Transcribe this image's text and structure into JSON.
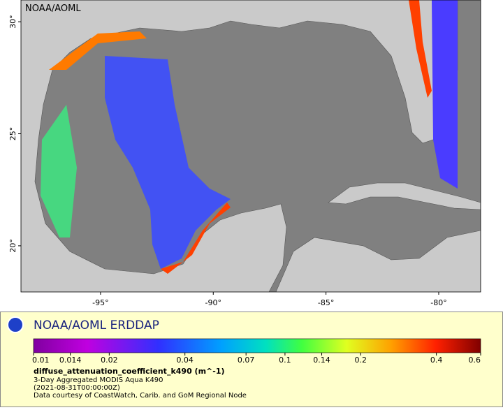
{
  "map": {
    "watermark": "NOAA/AOML",
    "xlim": [
      -98.53,
      -78.14
    ],
    "ylim": [
      17.94,
      30.97
    ],
    "xticks": [
      {
        "value": -95,
        "label": "-95°"
      },
      {
        "value": -90,
        "label": "-90°"
      },
      {
        "value": -85,
        "label": "-85°"
      },
      {
        "value": -80,
        "label": "-80°"
      }
    ],
    "yticks": [
      {
        "value": 20,
        "label": "20°"
      },
      {
        "value": 25,
        "label": "25°"
      },
      {
        "value": 30,
        "label": "30°"
      }
    ]
  },
  "legend": {
    "title": "NOAA/AOML ERDDAP",
    "colorbar": {
      "lim": [
        0.01,
        0.6
      ],
      "log": true,
      "ticks": [
        0.01,
        0.014,
        0.02,
        0.04,
        0.07,
        0.1,
        0.14,
        0.2,
        0.4,
        0.6
      ]
    },
    "variable": "diffuse_attenuation_coefficient_k490 (m^-1)",
    "lines": [
      "3-Day Aggregated MODIS Aqua K490",
      "(2021-08-31T00:00:00Z)",
      "Data courtesy of CoastWatch, Carib. and GoM Regional Node"
    ]
  }
}
